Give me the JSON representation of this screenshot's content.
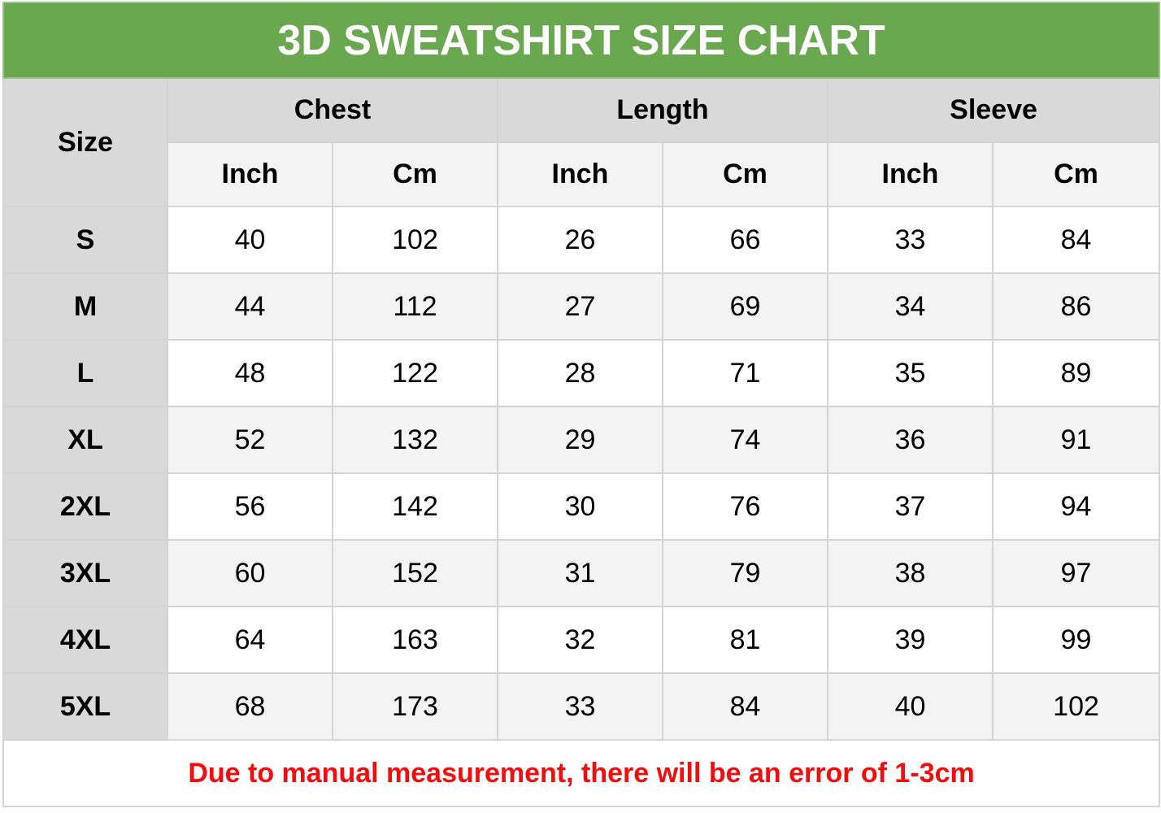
{
  "title": "3D SWEATSHIRT SIZE CHART",
  "headers": {
    "size": "Size",
    "groups": [
      "Chest",
      "Length",
      "Sleeve"
    ],
    "units": [
      "Inch",
      "Cm",
      "Inch",
      "Cm",
      "Inch",
      "Cm"
    ]
  },
  "rows": [
    {
      "size": "S",
      "values": [
        "40",
        "102",
        "26",
        "66",
        "33",
        "84"
      ]
    },
    {
      "size": "M",
      "values": [
        "44",
        "112",
        "27",
        "69",
        "34",
        "86"
      ]
    },
    {
      "size": "L",
      "values": [
        "48",
        "122",
        "28",
        "71",
        "35",
        "89"
      ]
    },
    {
      "size": "XL",
      "values": [
        "52",
        "132",
        "29",
        "74",
        "36",
        "91"
      ]
    },
    {
      "size": "2XL",
      "values": [
        "56",
        "142",
        "30",
        "76",
        "37",
        "94"
      ]
    },
    {
      "size": "3XL",
      "values": [
        "60",
        "152",
        "31",
        "79",
        "38",
        "97"
      ]
    },
    {
      "size": "4XL",
      "values": [
        "64",
        "163",
        "32",
        "81",
        "39",
        "99"
      ]
    },
    {
      "size": "5XL",
      "values": [
        "68",
        "173",
        "33",
        "84",
        "40",
        "102"
      ]
    }
  ],
  "note": "Due to manual measurement, there will be an error of 1-3cm",
  "colors": {
    "title_bg": "#6aa84f",
    "header_bg": "#d9d9d9",
    "alt_row_bg": "#f3f3f3",
    "note_text": "#f40c0c"
  }
}
